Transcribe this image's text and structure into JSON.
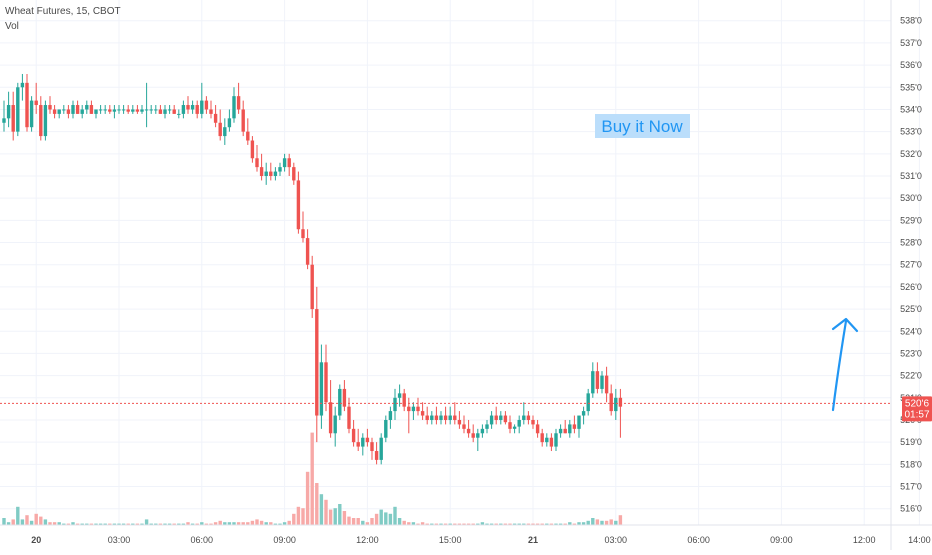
{
  "legend": {
    "symbol": "Wheat Futures, 15, CBOT",
    "volume": "Vol"
  },
  "colors": {
    "up": "#26a69a",
    "down": "#ef5350",
    "up_vol": "#80cbc4",
    "down_vol": "#f7a9a7",
    "arrow": "#2196f3",
    "grid": "#f0f3fa",
    "axis_text": "#4a4a4a",
    "price_line": "#ef5350",
    "annotation_bg": "#bbdefb",
    "annotation_text": "#2196f3"
  },
  "annotation": {
    "text": "Buy it Now"
  },
  "price_badge": {
    "price": "520'6",
    "countdown": "01:57"
  },
  "chart_data": {
    "type": "candlestick",
    "title": "Wheat Futures, 15, CBOT",
    "interval": "15",
    "ylim": [
      515.4,
      538.8
    ],
    "y_ticks": [
      "516'0",
      "517'0",
      "518'0",
      "519'0",
      "520'0",
      "521'0",
      "522'0",
      "523'0",
      "524'0",
      "525'0",
      "526'0",
      "527'0",
      "528'0",
      "529'0",
      "530'0",
      "531'0",
      "532'0",
      "533'0",
      "534'0",
      "535'0",
      "536'0",
      "537'0",
      "538'0"
    ],
    "x_ticks": [
      {
        "label": "20",
        "bar": 7
      },
      {
        "label": "03:00",
        "bar": 25
      },
      {
        "label": "06:00",
        "bar": 43
      },
      {
        "label": "09:00",
        "bar": 61
      },
      {
        "label": "12:00",
        "bar": 79
      },
      {
        "label": "15:00",
        "bar": 97
      },
      {
        "label": "21",
        "bar": 115
      },
      {
        "label": "03:00",
        "bar": 133
      },
      {
        "label": "06:00",
        "bar": 151
      },
      {
        "label": "09:00",
        "bar": 169
      },
      {
        "label": "12:00",
        "bar": 187
      },
      {
        "label": "14:00",
        "bar": 199
      }
    ],
    "last_price": 520.75,
    "candles": [
      [
        533.4,
        534.4,
        533.0,
        533.6,
        0.05
      ],
      [
        533.6,
        534.8,
        533.2,
        534.2,
        0.02
      ],
      [
        534.2,
        534.8,
        532.6,
        533.0,
        0.04
      ],
      [
        533.0,
        535.2,
        532.8,
        535.0,
        0.13
      ],
      [
        535.0,
        535.6,
        534.4,
        535.2,
        0.04
      ],
      [
        535.2,
        535.6,
        533.0,
        533.2,
        0.07
      ],
      [
        533.2,
        534.6,
        533.0,
        534.4,
        0.03
      ],
      [
        534.4,
        535.2,
        533.8,
        534.2,
        0.08
      ],
      [
        534.2,
        534.6,
        532.6,
        532.8,
        0.06
      ],
      [
        532.8,
        534.4,
        532.6,
        534.2,
        0.04
      ],
      [
        534.2,
        534.6,
        533.8,
        534.0,
        0.02
      ],
      [
        534.0,
        534.2,
        533.6,
        533.8,
        0.02
      ],
      [
        533.8,
        534.0,
        533.6,
        534.0,
        0.02
      ],
      [
        534.0,
        534.2,
        533.8,
        534.0,
        0.01
      ],
      [
        534.0,
        534.2,
        533.6,
        533.8,
        0.01
      ],
      [
        533.8,
        534.4,
        533.6,
        534.2,
        0.02
      ],
      [
        534.2,
        534.4,
        533.8,
        533.8,
        0.01
      ],
      [
        533.8,
        534.2,
        533.6,
        534.0,
        0.01
      ],
      [
        534.0,
        534.4,
        533.8,
        534.2,
        0.01
      ],
      [
        534.2,
        534.4,
        533.8,
        533.8,
        0.01
      ],
      [
        533.8,
        534.0,
        533.6,
        534.0,
        0.01
      ],
      [
        534.0,
        534.2,
        533.8,
        534.0,
        0.01
      ],
      [
        534.0,
        534.2,
        533.8,
        534.0,
        0.01
      ],
      [
        534.0,
        534.2,
        533.8,
        533.9,
        0.01
      ],
      [
        533.9,
        534.2,
        533.6,
        534.0,
        0.01
      ],
      [
        534.0,
        534.2,
        533.8,
        534.0,
        0.01
      ],
      [
        534.0,
        534.2,
        533.8,
        534.0,
        0.01
      ],
      [
        534.0,
        534.2,
        533.8,
        533.9,
        0.01
      ],
      [
        533.9,
        534.2,
        533.8,
        534.0,
        0.01
      ],
      [
        534.0,
        534.2,
        533.8,
        533.9,
        0.01
      ],
      [
        533.9,
        534.2,
        533.8,
        534.0,
        0.01
      ],
      [
        534.0,
        535.2,
        533.2,
        534.0,
        0.04
      ],
      [
        534.0,
        534.2,
        533.8,
        534.0,
        0.01
      ],
      [
        534.0,
        534.2,
        533.8,
        534.0,
        0.01
      ],
      [
        534.0,
        534.2,
        533.8,
        533.8,
        0.01
      ],
      [
        533.8,
        534.2,
        533.6,
        534.0,
        0.01
      ],
      [
        534.0,
        534.2,
        533.8,
        534.0,
        0.01
      ],
      [
        534.0,
        534.2,
        533.8,
        533.8,
        0.01
      ],
      [
        533.8,
        534.0,
        533.6,
        533.8,
        0.01
      ],
      [
        533.8,
        534.4,
        533.6,
        534.2,
        0.01
      ],
      [
        534.2,
        534.6,
        533.8,
        534.0,
        0.02
      ],
      [
        534.0,
        534.4,
        533.8,
        534.2,
        0.01
      ],
      [
        534.2,
        534.4,
        533.6,
        533.8,
        0.01
      ],
      [
        533.8,
        535.2,
        533.6,
        534.4,
        0.02
      ],
      [
        534.4,
        534.6,
        533.8,
        534.0,
        0.01
      ],
      [
        534.0,
        534.4,
        533.6,
        533.8,
        0.01
      ],
      [
        533.8,
        534.2,
        533.2,
        533.4,
        0.02
      ],
      [
        533.4,
        534.0,
        532.6,
        532.8,
        0.03
      ],
      [
        532.8,
        533.6,
        532.4,
        533.2,
        0.02
      ],
      [
        533.2,
        534.0,
        533.0,
        533.6,
        0.02
      ],
      [
        533.6,
        535.0,
        533.4,
        534.6,
        0.02
      ],
      [
        534.6,
        535.2,
        533.8,
        534.0,
        0.02
      ],
      [
        534.0,
        534.4,
        532.8,
        533.0,
        0.02
      ],
      [
        533.0,
        533.6,
        532.4,
        532.6,
        0.02
      ],
      [
        532.6,
        532.8,
        531.6,
        531.8,
        0.03
      ],
      [
        531.8,
        532.4,
        531.2,
        531.4,
        0.04
      ],
      [
        531.4,
        532.0,
        530.8,
        531.0,
        0.03
      ],
      [
        531.0,
        531.6,
        530.6,
        531.2,
        0.02
      ],
      [
        531.2,
        531.6,
        530.8,
        531.0,
        0.02
      ],
      [
        531.0,
        531.4,
        530.8,
        531.2,
        0.01
      ],
      [
        531.2,
        531.6,
        531.0,
        531.4,
        0.01
      ],
      [
        531.4,
        532.0,
        531.2,
        531.8,
        0.02
      ],
      [
        531.8,
        532.0,
        531.0,
        531.4,
        0.03
      ],
      [
        531.4,
        531.6,
        530.6,
        530.8,
        0.08
      ],
      [
        530.8,
        531.2,
        528.4,
        528.6,
        0.13
      ],
      [
        528.6,
        529.4,
        528.0,
        528.2,
        0.12
      ],
      [
        528.2,
        528.6,
        526.8,
        527.0,
        0.38
      ],
      [
        527.0,
        527.4,
        524.6,
        525.0,
        0.66
      ],
      [
        525.0,
        526.0,
        519.0,
        520.2,
        0.3
      ],
      [
        520.2,
        523.4,
        519.6,
        522.6,
        0.22
      ],
      [
        522.6,
        523.4,
        520.4,
        520.8,
        0.18
      ],
      [
        520.8,
        521.8,
        519.2,
        519.4,
        0.11
      ],
      [
        519.4,
        520.6,
        518.8,
        520.2,
        0.12
      ],
      [
        520.2,
        521.6,
        520.0,
        521.4,
        0.15
      ],
      [
        521.4,
        521.8,
        520.4,
        520.6,
        0.1
      ],
      [
        520.6,
        521.0,
        519.4,
        519.6,
        0.06
      ],
      [
        519.6,
        520.0,
        518.8,
        519.0,
        0.05
      ],
      [
        519.0,
        519.6,
        518.6,
        518.8,
        0.05
      ],
      [
        518.8,
        519.4,
        518.4,
        519.2,
        0.03
      ],
      [
        519.2,
        519.6,
        518.8,
        519.0,
        0.02
      ],
      [
        519.0,
        519.2,
        518.2,
        518.6,
        0.05
      ],
      [
        518.6,
        519.0,
        518.0,
        518.2,
        0.08
      ],
      [
        518.2,
        519.4,
        518.0,
        519.2,
        0.11
      ],
      [
        519.2,
        520.2,
        519.0,
        520.0,
        0.09
      ],
      [
        520.0,
        520.6,
        519.6,
        520.4,
        0.08
      ],
      [
        520.4,
        521.4,
        520.0,
        521.0,
        0.13
      ],
      [
        521.0,
        521.6,
        520.6,
        521.2,
        0.05
      ],
      [
        521.2,
        521.4,
        520.4,
        520.6,
        0.03
      ],
      [
        520.6,
        521.0,
        519.4,
        520.4,
        0.02
      ],
      [
        520.4,
        520.8,
        520.0,
        520.6,
        0.02
      ],
      [
        520.6,
        521.0,
        520.2,
        520.4,
        0.01
      ],
      [
        520.4,
        520.8,
        520.0,
        520.2,
        0.02
      ],
      [
        520.2,
        520.6,
        519.8,
        520.0,
        0.01
      ],
      [
        520.0,
        520.4,
        519.8,
        520.2,
        0.01
      ],
      [
        520.2,
        520.6,
        519.8,
        520.0,
        0.01
      ],
      [
        520.0,
        520.4,
        519.8,
        520.2,
        0.01
      ],
      [
        520.2,
        520.6,
        519.8,
        520.0,
        0.01
      ],
      [
        520.0,
        520.6,
        519.8,
        520.2,
        0.01
      ],
      [
        520.2,
        520.8,
        519.8,
        520.0,
        0.01
      ],
      [
        520.0,
        520.4,
        519.6,
        519.8,
        0.01
      ],
      [
        519.8,
        520.2,
        519.4,
        519.6,
        0.01
      ],
      [
        519.6,
        520.0,
        519.2,
        519.4,
        0.01
      ],
      [
        519.4,
        519.8,
        519.0,
        519.2,
        0.01
      ],
      [
        519.2,
        519.6,
        518.6,
        519.4,
        0.01
      ],
      [
        519.4,
        519.8,
        519.2,
        519.6,
        0.02
      ],
      [
        519.6,
        520.0,
        519.4,
        519.8,
        0.01
      ],
      [
        519.8,
        520.4,
        519.6,
        520.2,
        0.01
      ],
      [
        520.2,
        520.6,
        519.8,
        520.0,
        0.01
      ],
      [
        520.0,
        520.4,
        519.8,
        520.2,
        0.01
      ],
      [
        520.2,
        520.4,
        519.8,
        519.9,
        0.01
      ],
      [
        519.9,
        520.2,
        519.4,
        519.6,
        0.01
      ],
      [
        519.6,
        519.8,
        519.4,
        519.7,
        0.01
      ],
      [
        519.7,
        520.2,
        519.4,
        520.0,
        0.01
      ],
      [
        520.0,
        520.8,
        519.8,
        520.2,
        0.01
      ],
      [
        520.2,
        520.4,
        519.8,
        520.0,
        0.01
      ],
      [
        520.0,
        520.2,
        519.6,
        519.8,
        0.01
      ],
      [
        519.8,
        520.0,
        519.2,
        519.4,
        0.01
      ],
      [
        519.4,
        519.6,
        518.8,
        519.0,
        0.01
      ],
      [
        519.0,
        519.4,
        518.8,
        519.2,
        0.01
      ],
      [
        519.2,
        519.4,
        518.6,
        518.8,
        0.01
      ],
      [
        518.8,
        519.6,
        518.6,
        519.4,
        0.01
      ],
      [
        519.4,
        519.8,
        519.2,
        519.6,
        0.01
      ],
      [
        519.6,
        520.0,
        519.4,
        519.4,
        0.01
      ],
      [
        519.4,
        520.0,
        519.2,
        519.8,
        0.02
      ],
      [
        519.8,
        520.2,
        519.4,
        519.6,
        0.01
      ],
      [
        519.6,
        520.0,
        519.2,
        520.2,
        0.02
      ],
      [
        520.2,
        520.6,
        519.8,
        520.4,
        0.02
      ],
      [
        520.4,
        521.4,
        520.2,
        521.2,
        0.03
      ],
      [
        521.2,
        522.6,
        521.0,
        522.2,
        0.05
      ],
      [
        522.2,
        522.6,
        521.2,
        521.4,
        0.04
      ],
      [
        521.4,
        522.2,
        521.2,
        522.0,
        0.03
      ],
      [
        522.0,
        522.4,
        520.8,
        521.2,
        0.03
      ],
      [
        521.2,
        521.6,
        520.2,
        520.4,
        0.04
      ],
      [
        520.4,
        521.4,
        520.0,
        521.0,
        0.03
      ],
      [
        521.0,
        521.4,
        519.2,
        520.6,
        0.07
      ]
    ]
  }
}
